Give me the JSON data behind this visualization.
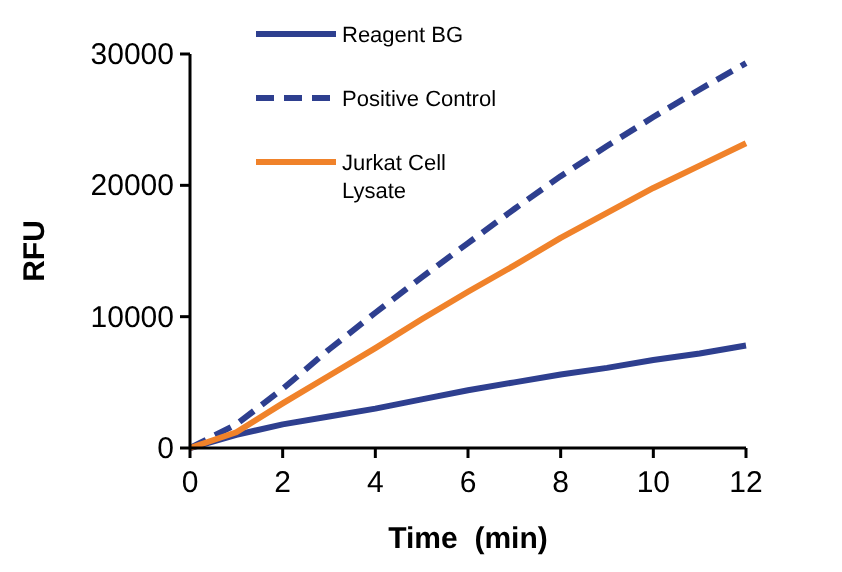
{
  "chart_data": {
    "type": "line",
    "xlabel": "Time  (min)",
    "ylabel": "RFU",
    "x": [
      0,
      1,
      2,
      3,
      4,
      5,
      6,
      7,
      8,
      9,
      10,
      11,
      12
    ],
    "xlim": [
      0,
      12
    ],
    "xticks": [
      0,
      2,
      4,
      6,
      8,
      10,
      12
    ],
    "ylim": [
      0,
      30000
    ],
    "yticks": [
      0,
      10000,
      20000,
      30000
    ],
    "legend": "top left",
    "grid": false,
    "marker": "none",
    "series": [
      {
        "name": "Reagent BG",
        "color": "#2e3f8f",
        "line_style": "solid",
        "values": [
          0,
          1000,
          1800,
          2400,
          3000,
          3700,
          4400,
          5000,
          5600,
          6100,
          6700,
          7200,
          7800
        ]
      },
      {
        "name": "Positive Control",
        "color": "#2e3f8f",
        "line_style": "dashed",
        "values": [
          0,
          1800,
          4500,
          7500,
          10300,
          13000,
          15600,
          18200,
          20700,
          23000,
          25200,
          27300,
          29300
        ]
      },
      {
        "name": "Jurkat Cell\nLysate",
        "color": "#f0822a",
        "line_style": "solid",
        "values": [
          0,
          1200,
          3400,
          5500,
          7600,
          9800,
          11900,
          13900,
          16000,
          17900,
          19800,
          21500,
          23200
        ]
      }
    ]
  }
}
